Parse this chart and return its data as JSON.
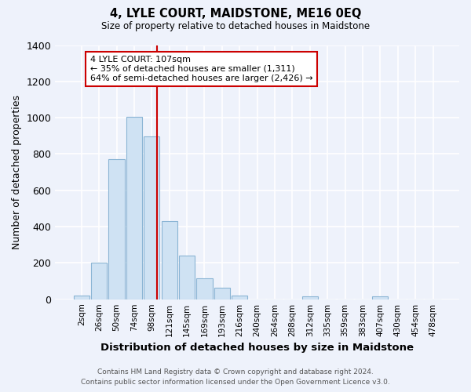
{
  "title": "4, LYLE COURT, MAIDSTONE, ME16 0EQ",
  "subtitle": "Size of property relative to detached houses in Maidstone",
  "xlabel": "Distribution of detached houses by size in Maidstone",
  "ylabel": "Number of detached properties",
  "bar_labels": [
    "2sqm",
    "26sqm",
    "50sqm",
    "74sqm",
    "98sqm",
    "121sqm",
    "145sqm",
    "169sqm",
    "193sqm",
    "216sqm",
    "240sqm",
    "264sqm",
    "288sqm",
    "312sqm",
    "335sqm",
    "359sqm",
    "383sqm",
    "407sqm",
    "430sqm",
    "454sqm",
    "478sqm"
  ],
  "bar_heights": [
    20,
    200,
    770,
    1005,
    895,
    430,
    240,
    115,
    65,
    20,
    0,
    0,
    0,
    18,
    0,
    0,
    0,
    15,
    0,
    0,
    0
  ],
  "bar_color": "#cfe2f3",
  "bar_edge_color": "#8ab4d4",
  "vline_color": "#cc0000",
  "annotation_title": "4 LYLE COURT: 107sqm",
  "annotation_line1": "← 35% of detached houses are smaller (1,311)",
  "annotation_line2": "64% of semi-detached houses are larger (2,426) →",
  "annotation_box_color": "#ffffff",
  "annotation_box_edge": "#cc0000",
  "ylim": [
    0,
    1400
  ],
  "yticks": [
    0,
    200,
    400,
    600,
    800,
    1000,
    1200,
    1400
  ],
  "footer1": "Contains HM Land Registry data © Crown copyright and database right 2024.",
  "footer2": "Contains public sector information licensed under the Open Government Licence v3.0.",
  "bg_color": "#eef2fb",
  "plot_bg_color": "#eef2fb",
  "grid_color": "#ffffff"
}
